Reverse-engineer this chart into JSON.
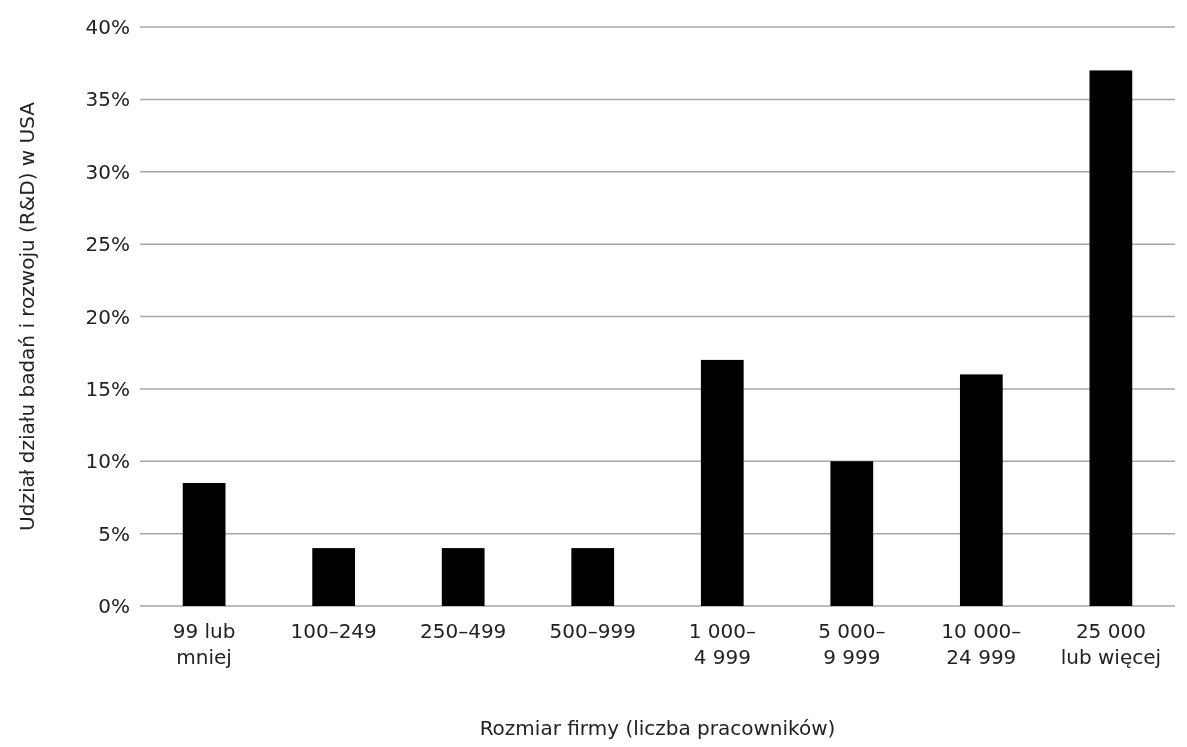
{
  "chart_data": {
    "type": "bar",
    "xlabel": "Rozmiar firmy (liczba pracowników)",
    "ylabel": "Udział działu badań i rozwoju (R&D) w USA",
    "categories": [
      "99 lub\nmniej",
      "100–249",
      "250–499",
      "500–999",
      "1 000–\n4 999",
      "5 000–\n9 999",
      "10 000–\n24 999",
      "25 000\nlub więcej"
    ],
    "values": [
      8.5,
      4,
      4,
      4,
      17,
      10,
      16,
      37
    ],
    "color": "#000000",
    "ylim": [
      0,
      40
    ],
    "yticks": [
      {
        "value": 0,
        "label": "0%"
      },
      {
        "value": 5,
        "label": "5%"
      },
      {
        "value": 10,
        "label": "10%"
      },
      {
        "value": 15,
        "label": "15%"
      },
      {
        "value": 20,
        "label": "20%"
      },
      {
        "value": 25,
        "label": "25%"
      },
      {
        "value": 30,
        "label": "30%"
      },
      {
        "value": 35,
        "label": "35%"
      },
      {
        "value": 40,
        "label": "40%"
      }
    ],
    "grid": "y"
  }
}
